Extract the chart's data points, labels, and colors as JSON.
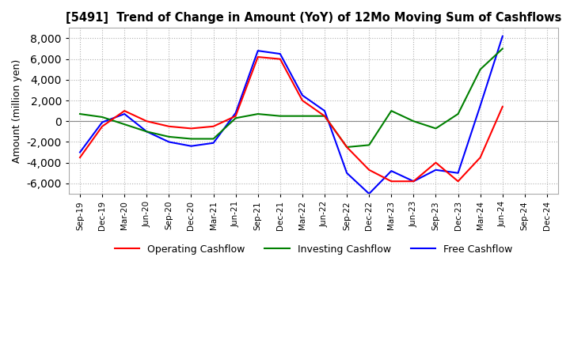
{
  "title": "[5491]  Trend of Change in Amount (YoY) of 12Mo Moving Sum of Cashflows",
  "ylabel": "Amount (million yen)",
  "x_labels": [
    "Sep-19",
    "Dec-19",
    "Mar-20",
    "Jun-20",
    "Sep-20",
    "Dec-20",
    "Mar-21",
    "Jun-21",
    "Sep-21",
    "Dec-21",
    "Mar-22",
    "Jun-22",
    "Sep-22",
    "Dec-22",
    "Mar-23",
    "Jun-23",
    "Sep-23",
    "Dec-23",
    "Mar-24",
    "Jun-24",
    "Sep-24",
    "Dec-24"
  ],
  "ylim": [
    -7000,
    9000
  ],
  "yticks": [
    -6000,
    -4000,
    -2000,
    0,
    2000,
    4000,
    6000,
    8000
  ],
  "operating_cf": [
    -3500,
    -500,
    1000,
    0,
    -500,
    -700,
    -500,
    500,
    6200,
    6000,
    2000,
    500,
    -2500,
    -4700,
    -5800,
    -5800,
    -4000,
    -5800,
    -3500,
    1400,
    null,
    null
  ],
  "investing_cf": [
    700,
    400,
    -300,
    -1000,
    -1500,
    -1700,
    -1700,
    300,
    700,
    500,
    500,
    500,
    -2500,
    -2300,
    1000,
    0,
    -700,
    700,
    5000,
    7000,
    null,
    null
  ],
  "free_cf": [
    -3000,
    -100,
    700,
    -1000,
    -2000,
    -2400,
    -2100,
    800,
    6800,
    6500,
    2500,
    1000,
    -5000,
    -7000,
    -4800,
    -5800,
    -4700,
    -5000,
    1500,
    8200,
    null,
    null
  ],
  "operating_color": "#ff0000",
  "investing_color": "#008000",
  "free_color": "#0000ff",
  "background_color": "#ffffff",
  "grid_color": "#b0b0b0"
}
